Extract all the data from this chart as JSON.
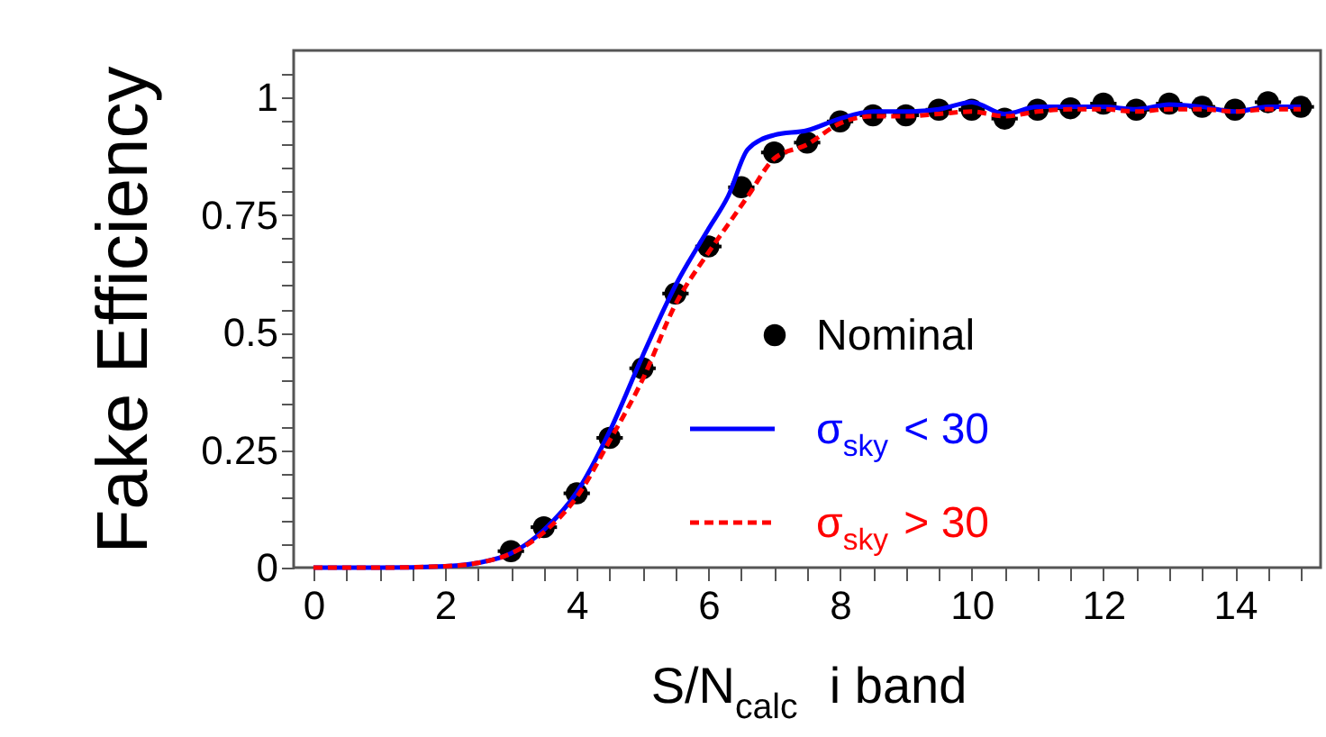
{
  "chart_data": {
    "type": "line",
    "xlabel": "S/N$_{calc}$  i band",
    "ylabel": "Fake Efficiency",
    "xlim": [
      -0.3,
      15.3
    ],
    "ylim": [
      0,
      1.1
    ],
    "xticks": [
      0,
      {
        "value": 0.5,
        "label": null
      },
      {
        "value": 1,
        "label": null
      },
      {
        "value": 1.5,
        "label": null
      },
      2,
      {
        "value": 2.5,
        "label": null
      },
      {
        "value": 3,
        "label": null
      },
      {
        "value": 3.5,
        "label": null
      },
      4,
      {
        "value": 4.5,
        "label": null
      },
      {
        "value": 5,
        "label": null
      },
      {
        "value": 5.5,
        "label": null
      },
      6,
      {
        "value": 6.5,
        "label": null
      },
      {
        "value": 7,
        "label": null
      },
      {
        "value": 7.5,
        "label": null
      },
      8,
      {
        "value": 8.5,
        "label": null
      },
      {
        "value": 9,
        "label": null
      },
      {
        "value": 9.5,
        "label": null
      },
      10,
      {
        "value": 10.5,
        "label": null
      },
      {
        "value": 11,
        "label": null
      },
      {
        "value": 11.5,
        "label": null
      },
      12,
      {
        "value": 12.5,
        "label": null
      },
      {
        "value": 13,
        "label": null
      },
      {
        "value": 13.5,
        "label": null
      },
      14,
      {
        "value": 14.5,
        "label": null
      },
      {
        "value": 15,
        "label": null
      }
    ],
    "yticks": [
      0,
      {
        "value": 0.05,
        "label": null
      },
      {
        "value": 0.1,
        "label": null
      },
      {
        "value": 0.15,
        "label": null
      },
      {
        "value": 0.2,
        "label": null
      },
      0.25,
      {
        "value": 0.3,
        "label": null
      },
      {
        "value": 0.35,
        "label": null
      },
      {
        "value": 0.4,
        "label": null
      },
      {
        "value": 0.45,
        "label": null
      },
      0.5,
      {
        "value": 0.55,
        "label": null
      },
      {
        "value": 0.6,
        "label": null
      },
      {
        "value": 0.65,
        "label": null
      },
      {
        "value": 0.7,
        "label": null
      },
      0.75,
      {
        "value": 0.8,
        "label": null
      },
      {
        "value": 0.85,
        "label": null
      },
      {
        "value": 0.9,
        "label": null
      },
      {
        "value": 0.95,
        "label": null
      },
      1,
      {
        "value": 1.05,
        "label": null
      }
    ],
    "grid": false,
    "legend": "bottom right",
    "series": [
      {
        "name": "Nominal",
        "type": "scatter",
        "marker": "circle",
        "color": "#000000",
        "x": [
          3,
          3.5,
          4,
          4.5,
          5,
          5.5,
          6,
          6.5,
          7,
          7.5,
          8,
          8.5,
          9,
          9.5,
          10,
          10.5,
          11,
          11.5,
          12,
          12.5,
          13,
          13.5,
          14,
          14.5,
          15
        ],
        "values": [
          0.035,
          0.086,
          0.158,
          0.276,
          0.424,
          0.583,
          0.683,
          0.809,
          0.883,
          0.904,
          0.949,
          0.962,
          0.962,
          0.974,
          0.974,
          0.955,
          0.974,
          0.977,
          0.987,
          0.974,
          0.987,
          0.98,
          0.974,
          0.99,
          0.98
        ],
        "xerrors": [
          0.2,
          0.2,
          0.2,
          0.2,
          0.2,
          0.2,
          0.2,
          0.2,
          0.2,
          0.2,
          0.2,
          0.2,
          0.2,
          0.2,
          0.2,
          0.2,
          0.2,
          0.2,
          0.2,
          0.2,
          0.2,
          0.2,
          0.2,
          0.2,
          0.2
        ]
      },
      {
        "name": "σ$_{sky}$ < 30",
        "type": "line",
        "line_style": "solid",
        "color": "#0000ff",
        "x": [
          0,
          1,
          2,
          2.5,
          3,
          3.5,
          4,
          4.5,
          5,
          5.5,
          6,
          6.3,
          6.6,
          7,
          7.5,
          8,
          8.5,
          9,
          9.5,
          10,
          10.5,
          11,
          11.5,
          12,
          12.5,
          13,
          13.5,
          14,
          14.5,
          15
        ],
        "values": [
          0,
          0,
          0.003,
          0.01,
          0.03,
          0.08,
          0.16,
          0.29,
          0.45,
          0.6,
          0.72,
          0.79,
          0.89,
          0.92,
          0.93,
          0.955,
          0.97,
          0.97,
          0.975,
          0.99,
          0.965,
          0.98,
          0.98,
          0.98,
          0.975,
          0.985,
          0.98,
          0.97,
          0.98,
          0.98
        ]
      },
      {
        "name": "σ$_{sky}$ > 30",
        "type": "line",
        "line_style": "dashed",
        "color": "#ff0000",
        "x": [
          0,
          1,
          2,
          2.5,
          3,
          3.5,
          4,
          4.5,
          5,
          5.5,
          6,
          6.3,
          6.6,
          7,
          7.5,
          8,
          8.5,
          9,
          9.5,
          10,
          10.5,
          11,
          11.5,
          12,
          12.5,
          13,
          13.5,
          14,
          14.5,
          15
        ],
        "values": [
          0,
          0,
          0.003,
          0.01,
          0.03,
          0.075,
          0.15,
          0.27,
          0.4,
          0.56,
          0.67,
          0.73,
          0.79,
          0.87,
          0.9,
          0.945,
          0.96,
          0.96,
          0.965,
          0.97,
          0.96,
          0.97,
          0.975,
          0.975,
          0.97,
          0.975,
          0.975,
          0.97,
          0.975,
          0.975
        ]
      }
    ]
  }
}
